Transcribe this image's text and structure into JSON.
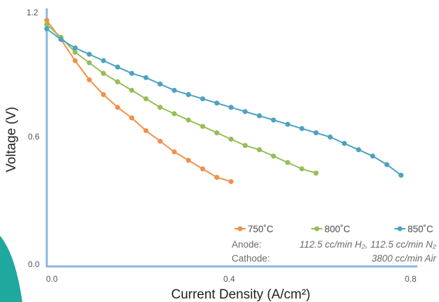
{
  "chart_data": {
    "type": "line",
    "xlabel": "Current Density (A/cm²)",
    "ylabel": "Voltage (V)",
    "xlim": [
      0,
      0.8
    ],
    "ylim": [
      0,
      1.2
    ],
    "x_ticks": [
      "0.0",
      "0.4",
      "0.8"
    ],
    "y_ticks": [
      "0.0",
      "0.6",
      "1.2"
    ],
    "grid": false,
    "legend_position": "bottom-right",
    "series": [
      {
        "name": "750˚C",
        "color": "#f0914a",
        "x": [
          0.0,
          0.031,
          0.062,
          0.093,
          0.124,
          0.155,
          0.186,
          0.217,
          0.248,
          0.279,
          0.31,
          0.341,
          0.372,
          0.403
        ],
        "y": [
          1.16,
          1.07,
          0.97,
          0.88,
          0.81,
          0.75,
          0.7,
          0.64,
          0.59,
          0.54,
          0.5,
          0.46,
          0.42,
          0.4
        ]
      },
      {
        "name": "800˚C",
        "color": "#97bd57",
        "x": [
          0.0,
          0.031,
          0.062,
          0.093,
          0.124,
          0.155,
          0.186,
          0.217,
          0.248,
          0.279,
          0.31,
          0.341,
          0.372,
          0.403,
          0.434,
          0.465,
          0.496,
          0.527,
          0.558,
          0.589
        ],
        "y": [
          1.14,
          1.08,
          1.01,
          0.96,
          0.91,
          0.87,
          0.83,
          0.79,
          0.75,
          0.72,
          0.69,
          0.66,
          0.63,
          0.6,
          0.57,
          0.55,
          0.52,
          0.49,
          0.46,
          0.44
        ]
      },
      {
        "name": "850˚C",
        "color": "#4ca2c2",
        "x": [
          0.0,
          0.031,
          0.062,
          0.093,
          0.124,
          0.155,
          0.186,
          0.217,
          0.248,
          0.279,
          0.31,
          0.341,
          0.372,
          0.403,
          0.434,
          0.465,
          0.496,
          0.527,
          0.558,
          0.589,
          0.62,
          0.651,
          0.682,
          0.713,
          0.744,
          0.775
        ],
        "y": [
          1.12,
          1.07,
          1.03,
          1.0,
          0.97,
          0.94,
          0.91,
          0.89,
          0.86,
          0.83,
          0.81,
          0.79,
          0.77,
          0.75,
          0.73,
          0.71,
          0.69,
          0.67,
          0.65,
          0.63,
          0.61,
          0.58,
          0.55,
          0.52,
          0.48,
          0.43
        ]
      }
    ],
    "annotations": {
      "anode_label": "Anode:",
      "anode_text": "112.5 cc/min H₂, 112.5 cc/min N₂",
      "cathode_label": "Cathode:",
      "cathode_text": "3800 cc/min Air"
    }
  }
}
